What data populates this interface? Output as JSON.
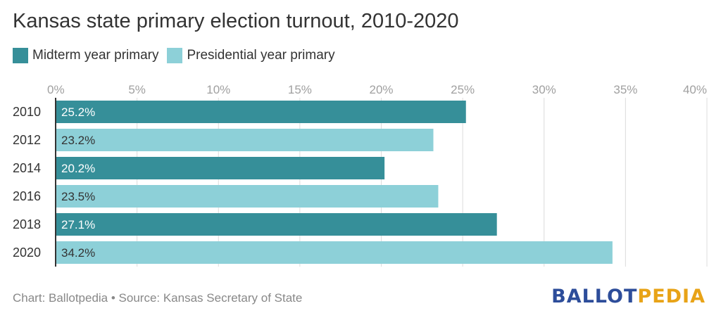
{
  "colors": {
    "midterm": "#368f99",
    "presidential": "#8dd0d8",
    "grid": "#dcdcdc",
    "axis": "#333333",
    "tick": "#a0a0a0",
    "brand_blue": "#2d4d9a",
    "brand_gold": "#e8a317"
  },
  "chart_data": {
    "type": "bar",
    "orientation": "horizontal",
    "title": "Kansas state primary election turnout, 2010-2020",
    "categories": [
      "2010",
      "2012",
      "2014",
      "2016",
      "2018",
      "2020"
    ],
    "values": [
      25.2,
      23.2,
      20.2,
      23.5,
      27.1,
      34.2
    ],
    "value_labels": [
      "25.2%",
      "23.2%",
      "20.2%",
      "23.5%",
      "27.1%",
      "34.2%"
    ],
    "bar_series": [
      "midterm",
      "presidential",
      "midterm",
      "presidential",
      "midterm",
      "presidential"
    ],
    "legend": [
      {
        "key": "midterm",
        "label": "Midterm year primary"
      },
      {
        "key": "presidential",
        "label": "Presidential year primary"
      }
    ],
    "legend_position": "top-left",
    "xlim": [
      0,
      40
    ],
    "x_ticks": [
      0,
      5,
      10,
      15,
      20,
      25,
      30,
      35,
      40
    ],
    "x_tick_labels": [
      "0%",
      "5%",
      "10%",
      "15%",
      "20%",
      "25%",
      "30%",
      "35%",
      "40%"
    ],
    "grid": true
  },
  "footer": {
    "source": "Chart: Ballotpedia • Source: Kansas Secretary of State",
    "brand_part1": "BALLOT",
    "brand_part2": "PEDIA"
  }
}
